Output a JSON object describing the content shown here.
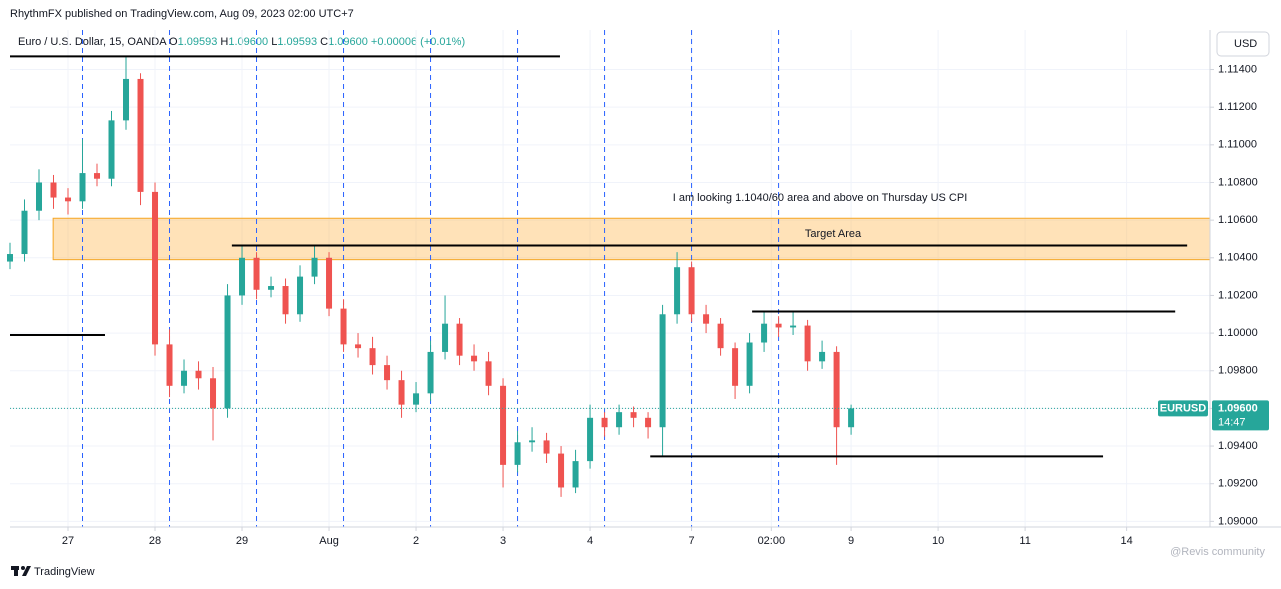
{
  "chart_data": {
    "type": "candlestick",
    "publisher": "RhythmFX published on TradingView.com, Aug 09, 2023 02:00 UTC+7",
    "symbol": "Euro / U.S. Dollar, 15, OANDA",
    "ohlc_legend": [
      {
        "key": "O",
        "text": "1.09593"
      },
      {
        "key": "H",
        "text": "1.09600"
      },
      {
        "key": "L",
        "text": "1.09593"
      },
      {
        "key": "C",
        "text": "1.09600"
      }
    ],
    "change": "+0.00006 (+0.01%)",
    "currency": "USD",
    "ticker": "EURUSD",
    "last_price": 1.096,
    "last_price_label": "1.09600",
    "countdown": "14:47",
    "notes": [
      "I am looking 1.1040/60 area and above on Thursday US CPI",
      "Target Area"
    ],
    "brand": "TradingView",
    "watermark": "@Revis community",
    "up_color": "#26a69a",
    "down_color": "#ef5350",
    "grid": true,
    "xlim": [
      0,
      331
    ],
    "xticks": [
      {
        "value": 16,
        "label": "27"
      },
      {
        "value": 40,
        "label": "28"
      },
      {
        "value": 64,
        "label": "29"
      },
      {
        "value": 88,
        "label": "Aug"
      },
      {
        "value": 112,
        "label": "2"
      },
      {
        "value": 136,
        "label": "3"
      },
      {
        "value": 160,
        "label": "4"
      },
      {
        "value": 188,
        "label": "7"
      },
      {
        "value": 210,
        "label": "02:00"
      },
      {
        "value": 232,
        "label": "9"
      },
      {
        "value": 256,
        "label": "10"
      },
      {
        "value": 280,
        "label": "11"
      },
      {
        "value": 308,
        "label": "14"
      }
    ],
    "ylim": [
      1.0897,
      1.1161
    ],
    "yticks": [
      {
        "value": 1.09,
        "label": "1.09000"
      },
      {
        "value": 1.092,
        "label": "1.09200"
      },
      {
        "value": 1.094,
        "label": "1.09400"
      },
      {
        "value": 1.096,
        "label": "1.09600"
      },
      {
        "value": 1.098,
        "label": "1.09800"
      },
      {
        "value": 1.1,
        "label": "1.10000"
      },
      {
        "value": 1.102,
        "label": "1.10200"
      },
      {
        "value": 1.104,
        "label": "1.10400"
      },
      {
        "value": 1.106,
        "label": "1.10600"
      },
      {
        "value": 1.108,
        "label": "1.10800"
      },
      {
        "value": 1.11,
        "label": "1.11000"
      },
      {
        "value": 1.112,
        "label": "1.11200"
      },
      {
        "value": 1.114,
        "label": "1.11400"
      }
    ],
    "x": [
      0,
      4,
      8,
      12,
      16,
      20,
      24,
      28,
      32,
      36,
      40,
      44,
      48,
      52,
      56,
      60,
      64,
      68,
      72,
      76,
      80,
      84,
      88,
      92,
      96,
      100,
      104,
      108,
      112,
      116,
      120,
      124,
      128,
      132,
      136,
      140,
      144,
      148,
      152,
      156,
      160,
      164,
      168,
      172,
      176,
      180,
      184,
      188,
      192,
      196,
      200,
      204,
      208,
      212,
      216,
      220,
      224,
      228,
      232
    ],
    "open": [
      1.1038,
      1.1042,
      1.1065,
      1.108,
      1.1072,
      1.107,
      1.1085,
      1.1082,
      1.1113,
      1.1135,
      1.1075,
      1.0994,
      1.0972,
      1.098,
      1.0976,
      1.096,
      1.102,
      1.104,
      1.1023,
      1.1025,
      1.101,
      1.103,
      1.104,
      1.1013,
      1.0994,
      1.0992,
      1.0983,
      1.0975,
      1.0962,
      1.0968,
      1.099,
      1.1005,
      1.0988,
      1.0985,
      1.0972,
      1.093,
      1.0942,
      1.0943,
      1.0936,
      1.0918,
      1.0932,
      1.0955,
      1.095,
      1.0958,
      1.0955,
      1.095,
      1.101,
      1.1035,
      1.101,
      1.1005,
      1.0992,
      1.0972,
      1.0995,
      1.1005,
      1.1003,
      1.1004,
      1.0985,
      1.099,
      1.095
    ],
    "high": [
      1.1048,
      1.1071,
      1.1087,
      1.1084,
      1.1077,
      1.1103,
      1.109,
      1.1118,
      1.1147,
      1.1138,
      1.108,
      1.1002,
      1.0986,
      1.0985,
      1.0982,
      1.1026,
      1.1046,
      1.1043,
      1.103,
      1.1029,
      1.1036,
      1.1046,
      1.1043,
      1.1018,
      1.1,
      1.0998,
      1.0988,
      1.098,
      1.0974,
      1.0996,
      1.102,
      1.1008,
      1.0994,
      1.099,
      1.0976,
      1.0948,
      1.095,
      1.0947,
      1.094,
      1.0938,
      1.0962,
      1.0958,
      1.0962,
      1.0961,
      1.0958,
      1.1015,
      1.1043,
      1.1038,
      1.1015,
      1.1008,
      1.0995,
      1.1,
      1.1012,
      1.1009,
      1.1012,
      1.1007,
      1.0996,
      1.0993,
      1.0962
    ],
    "low": [
      1.1034,
      1.1038,
      1.106,
      1.1066,
      1.1063,
      1.1066,
      1.1078,
      1.1078,
      1.1108,
      1.1068,
      1.0988,
      1.0966,
      1.0968,
      1.097,
      1.0943,
      1.0955,
      1.1015,
      1.1018,
      1.1019,
      1.1005,
      1.1006,
      1.1026,
      1.1009,
      1.099,
      1.0987,
      1.0978,
      1.097,
      1.0955,
      1.0958,
      1.0964,
      1.0986,
      1.0983,
      1.098,
      1.0967,
      1.0918,
      1.0926,
      1.0937,
      1.0931,
      1.0913,
      1.0915,
      1.0928,
      1.0945,
      1.0946,
      1.095,
      1.0944,
      1.0935,
      1.1005,
      1.1006,
      1.1,
      1.0988,
      1.0965,
      1.0968,
      1.099,
      1.0998,
      1.0999,
      1.098,
      1.0981,
      1.093,
      1.0946
    ],
    "close": [
      1.1042,
      1.1065,
      1.108,
      1.1072,
      1.107,
      1.1085,
      1.1082,
      1.1113,
      1.1135,
      1.1075,
      1.0994,
      1.0972,
      1.098,
      1.0976,
      1.096,
      1.102,
      1.104,
      1.1023,
      1.1025,
      1.101,
      1.103,
      1.104,
      1.1013,
      1.0994,
      1.0992,
      1.0983,
      1.0975,
      1.0962,
      1.0968,
      1.099,
      1.1005,
      1.0988,
      1.0985,
      1.0972,
      1.093,
      1.0942,
      1.0943,
      1.0936,
      1.0918,
      1.0932,
      1.0955,
      1.095,
      1.0958,
      1.0955,
      1.095,
      1.101,
      1.1035,
      1.101,
      1.1005,
      1.0992,
      1.0972,
      1.0995,
      1.1005,
      1.1003,
      1.1004,
      1.0985,
      1.099,
      1.095,
      1.096
    ],
    "session_lines": [
      20,
      44,
      68,
      92,
      116,
      140,
      164,
      188,
      212
    ],
    "zone": {
      "low": 1.1039,
      "high": 1.1061,
      "from": 11.9,
      "to": 331
    },
    "levels": [
      {
        "price": 1.1147,
        "from": 0,
        "to": 151.7
      },
      {
        "price": 1.0999,
        "from": 0,
        "to": 26.2
      },
      {
        "price": 1.10465,
        "from": 61.2,
        "to": 324.7
      },
      {
        "price": 1.10115,
        "from": 204.7,
        "to": 321.4
      },
      {
        "price": 1.09345,
        "from": 176.6,
        "to": 301.5
      }
    ]
  }
}
